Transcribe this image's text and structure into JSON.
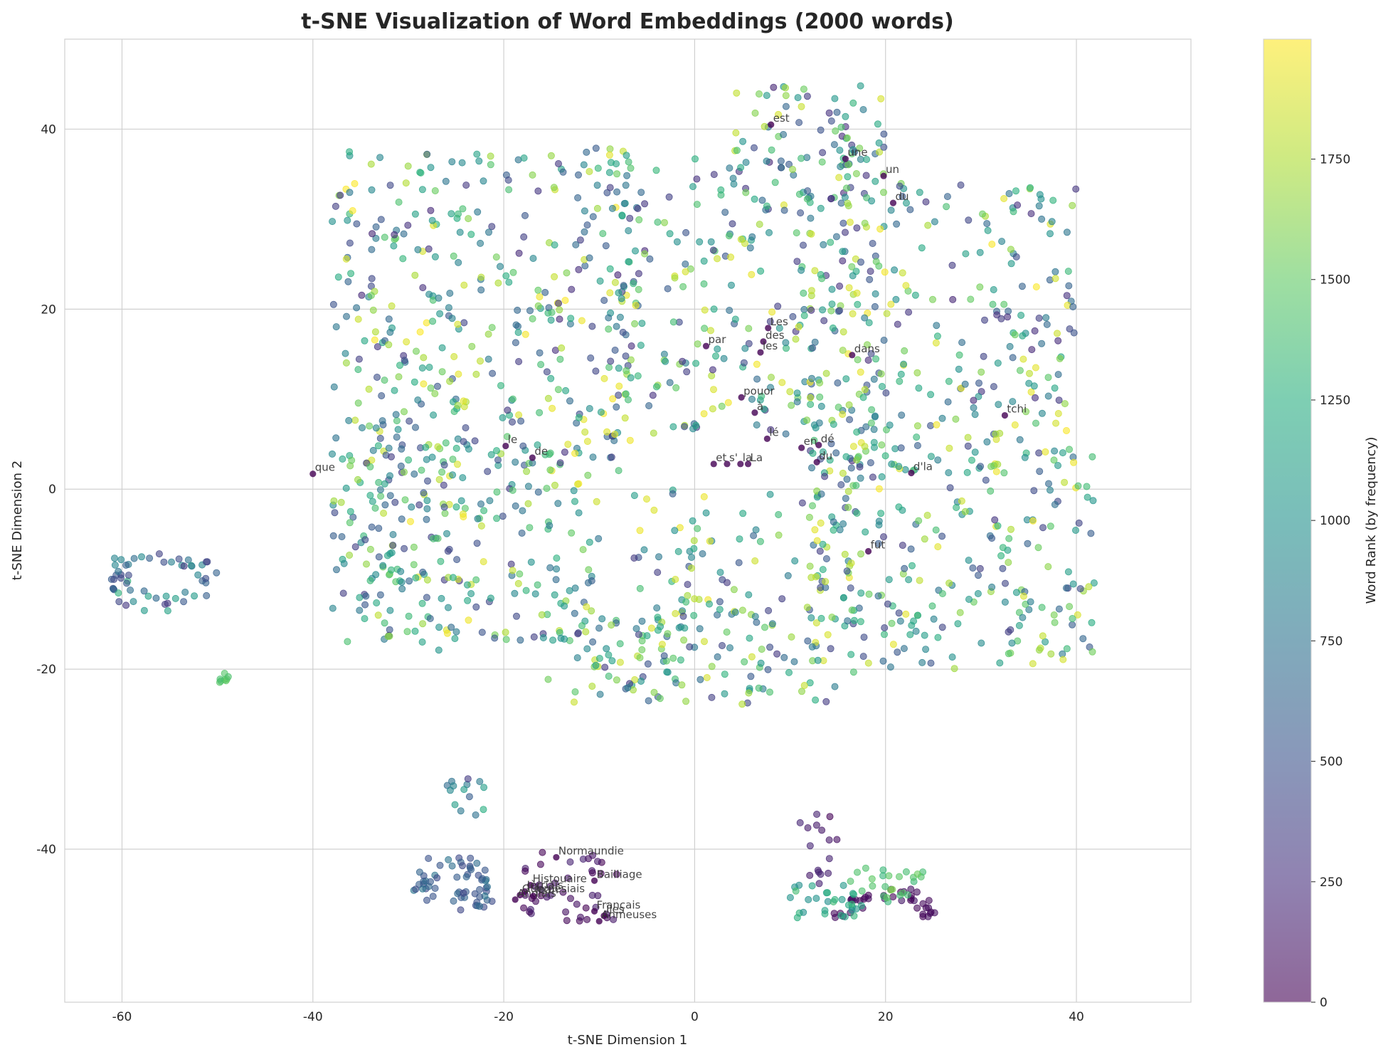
{
  "chart_data": {
    "type": "scatter",
    "title": "t-SNE Visualization of Word Embeddings (2000 words)",
    "xlabel": "t-SNE Dimension 1",
    "ylabel": "t-SNE Dimension 2",
    "xlim": [
      -66,
      52
    ],
    "ylim": [
      -57,
      50
    ],
    "xticks": [
      -60,
      -40,
      -20,
      0,
      20,
      40
    ],
    "yticks": [
      -40,
      -20,
      0,
      20,
      40
    ],
    "grid": true,
    "colormap": "viridis",
    "point_alpha": 0.6,
    "colorbar": {
      "label": "Word Rank (by frequency)",
      "range": [
        0,
        1999
      ],
      "ticks": [
        0,
        250,
        500,
        750,
        1000,
        1250,
        1500,
        1750
      ]
    },
    "labeled_points": [
      {
        "word": "est",
        "x": 8.0,
        "y": 40.5
      },
      {
        "word": "une",
        "x": 15.8,
        "y": 36.7
      },
      {
        "word": "un",
        "x": 19.8,
        "y": 34.8
      },
      {
        "word": "du",
        "x": 20.8,
        "y": 31.8
      },
      {
        "word": "Les",
        "x": 7.7,
        "y": 17.9
      },
      {
        "word": "par",
        "x": 1.2,
        "y": 15.9
      },
      {
        "word": "des",
        "x": 7.2,
        "y": 16.4
      },
      {
        "word": "les",
        "x": 6.9,
        "y": 15.2
      },
      {
        "word": "dans",
        "x": 16.5,
        "y": 14.9
      },
      {
        "word": "pouor",
        "x": 4.9,
        "y": 10.2
      },
      {
        "word": "à",
        "x": 6.3,
        "y": 8.5
      },
      {
        "word": "tchi",
        "x": 32.5,
        "y": 8.2
      },
      {
        "word": "le",
        "x": -19.8,
        "y": 4.8
      },
      {
        "word": "de",
        "x": -17.0,
        "y": 3.5
      },
      {
        "word": "lé",
        "x": 7.6,
        "y": 5.6
      },
      {
        "word": "dé",
        "x": 13.0,
        "y": 4.9
      },
      {
        "word": "en",
        "x": 11.2,
        "y": 4.6
      },
      {
        "word": "du",
        "x": 12.8,
        "y": 3.0
      },
      {
        "word": "et",
        "x": 2.0,
        "y": 2.8
      },
      {
        "word": "s'",
        "x": 3.4,
        "y": 2.8
      },
      {
        "word": "la",
        "x": 4.8,
        "y": 2.8
      },
      {
        "word": "La",
        "x": 5.6,
        "y": 2.8
      },
      {
        "word": "d'la",
        "x": 22.7,
        "y": 1.8
      },
      {
        "word": "que",
        "x": -40.0,
        "y": 1.7
      },
      {
        "word": "fut",
        "x": 18.2,
        "y": -6.9
      },
      {
        "word": "Normaundie",
        "x": -14.5,
        "y": -40.9
      },
      {
        "word": "Bailliage",
        "x": -10.5,
        "y": -43.5
      },
      {
        "word": "Histouaire",
        "x": -17.2,
        "y": -44.0
      },
      {
        "word": "Jèrriais",
        "x": -17.8,
        "y": -44.7
      },
      {
        "word": "Guernésiais",
        "x": -18.3,
        "y": -45.1
      },
      {
        "word": "Anglais",
        "x": -18.8,
        "y": -45.6
      },
      {
        "word": "Jean",
        "x": -16.9,
        "y": -45.2
      },
      {
        "word": "Français",
        "x": -10.5,
        "y": -46.9
      },
      {
        "word": "Îles",
        "x": -9.5,
        "y": -47.4
      },
      {
        "word": "Anmeuses",
        "x": -10.0,
        "y": -48.0
      }
    ]
  }
}
